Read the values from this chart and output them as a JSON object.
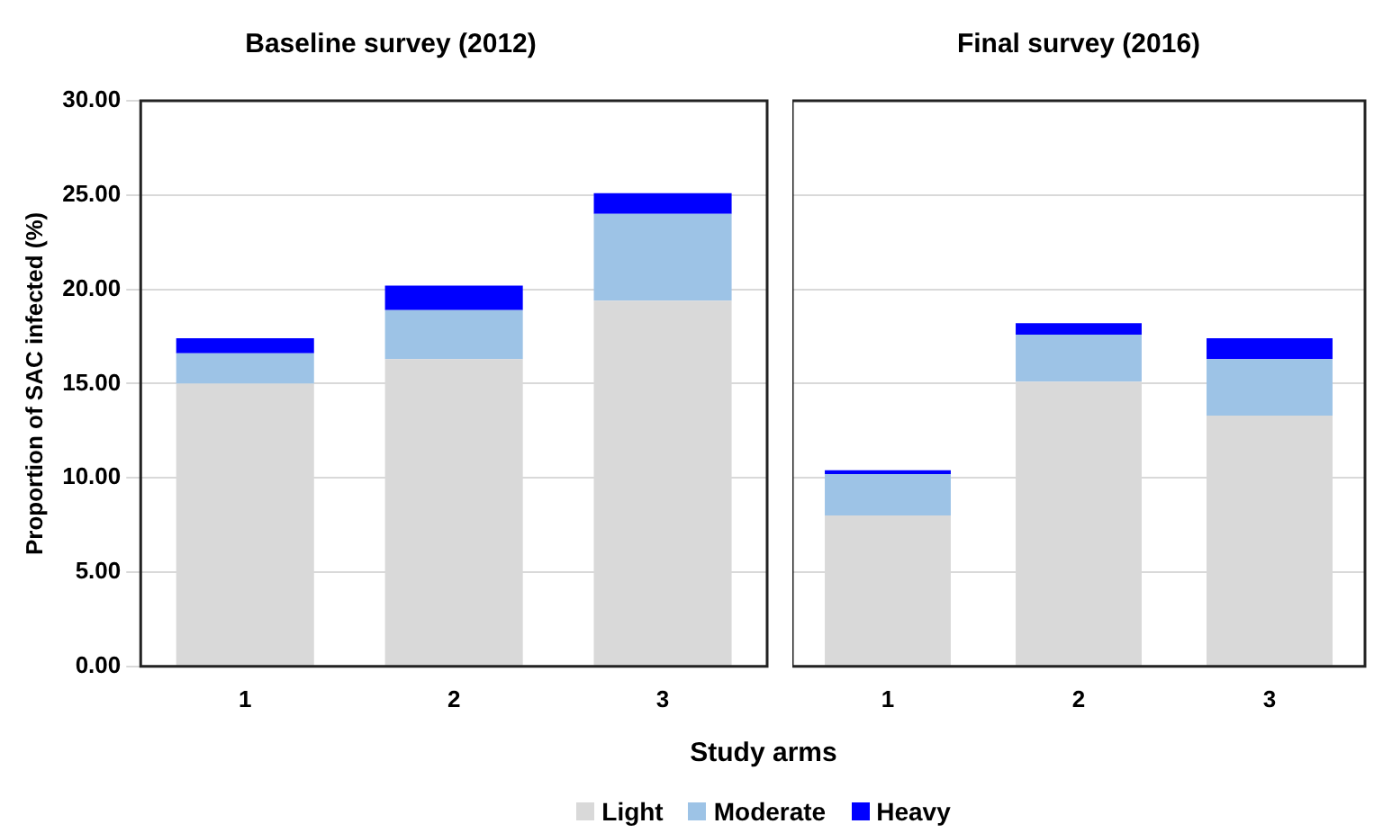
{
  "chart_data": [
    {
      "type": "bar",
      "title": "Baseline survey (2012)",
      "categories": [
        "1",
        "2",
        "3"
      ],
      "stacked": true,
      "xlabel": "Study arms",
      "ylabel": "Proportion of SAC infected (%)",
      "ylim": [
        0,
        30
      ],
      "yticks": [
        {
          "value": 0,
          "label": "0.00"
        },
        {
          "value": 5,
          "label": "5.00"
        },
        {
          "value": 10,
          "label": "10.00"
        },
        {
          "value": 15,
          "label": "15.00"
        },
        {
          "value": 20,
          "label": "20.00"
        },
        {
          "value": 25,
          "label": "25.00"
        },
        {
          "value": 30,
          "label": "30.00"
        }
      ],
      "grid": "y",
      "legend": "bottom",
      "series": [
        {
          "name": "Light",
          "color": "#d9d9d9",
          "values": [
            15.0,
            16.3,
            19.4
          ]
        },
        {
          "name": "Moderate",
          "color": "#9dc3e6",
          "values": [
            1.6,
            2.6,
            4.6
          ]
        },
        {
          "name": "Heavy",
          "color": "#0000ff",
          "values": [
            0.8,
            1.3,
            1.1
          ]
        }
      ]
    },
    {
      "type": "bar",
      "title": "Final survey (2016)",
      "categories": [
        "1",
        "2",
        "3"
      ],
      "stacked": true,
      "ylim": [
        0,
        30
      ],
      "yticks": [
        0,
        5,
        10,
        15,
        20,
        25,
        30
      ],
      "tick_labels": "x",
      "grid": "y",
      "series": [
        {
          "color": "#d9d9d9",
          "values": [
            8.0,
            15.1,
            13.3
          ]
        },
        {
          "color": "#9dc3e6",
          "values": [
            2.2,
            2.5,
            3.0
          ]
        },
        {
          "color": "#0000ff",
          "values": [
            0.2,
            0.6,
            1.1
          ]
        }
      ]
    }
  ]
}
